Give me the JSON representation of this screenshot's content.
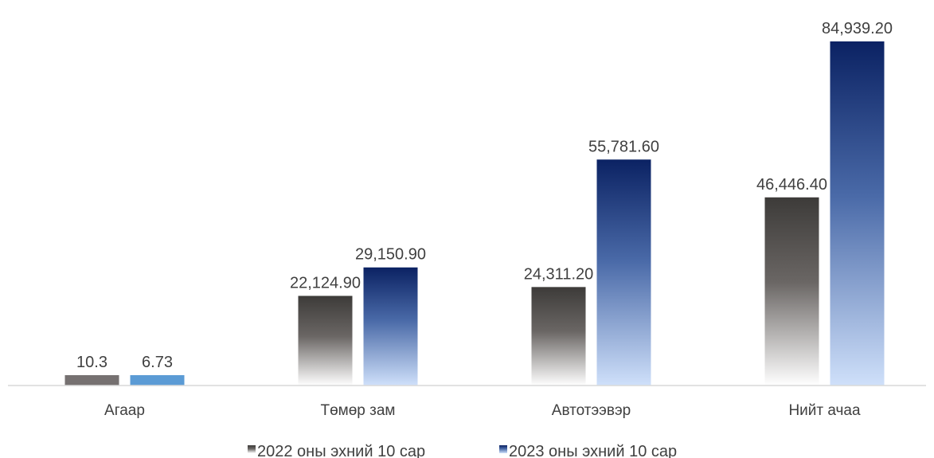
{
  "chart_data": {
    "type": "bar",
    "title": "",
    "xlabel": "",
    "ylabel": "",
    "categories": [
      "Агаар",
      "Төмөр зам",
      "Автотээвэр",
      "Нийт ачаа"
    ],
    "series": [
      {
        "name": "2022 оны эхний 10 сар",
        "values": [
          10.3,
          22124.9,
          24311.2,
          46446.4
        ],
        "labels": [
          "10.3",
          "22,124.90",
          "24,311.20",
          "46,446.40"
        ]
      },
      {
        "name": "2023 оны эхний 10 сар",
        "values": [
          6.73,
          29150.9,
          55781.6,
          84939.2
        ],
        "labels": [
          "6.73",
          "29,150.90",
          "55,781.60",
          "84,939.20"
        ]
      }
    ],
    "legend_position": "bottom",
    "grid": false,
    "colors": {
      "series_2022_top": "#3d3b39",
      "series_2022_bottom": "#ffffff",
      "series_2023_top": "#0b2263",
      "series_2023_bottom": "#cfe0fa",
      "agaar_2022": "#767171",
      "agaar_2023": "#5b9bd5",
      "axis": "#d9d9d9",
      "text": "#404040"
    }
  }
}
